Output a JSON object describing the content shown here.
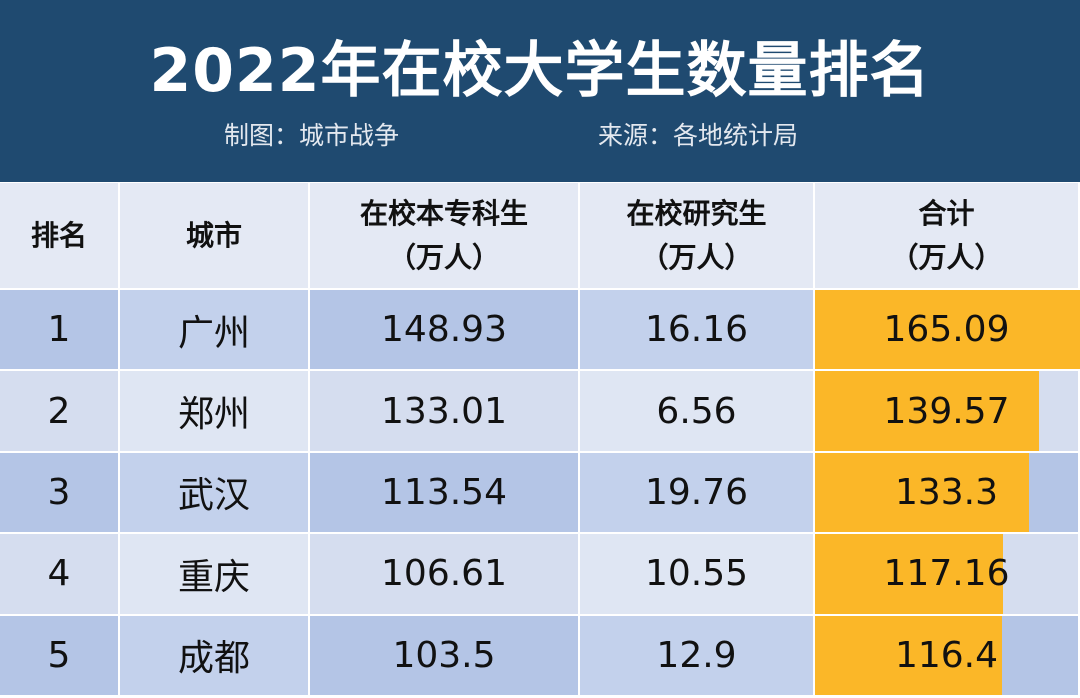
{
  "header": {
    "title": "2022年在校大学生数量排名",
    "credit": "制图：城市战争",
    "source": "来源：各地统计局"
  },
  "table": {
    "columns": [
      {
        "name": "排名"
      },
      {
        "name": "城市"
      },
      {
        "name": "在校本专科生",
        "unit": "（万人）"
      },
      {
        "name": "在校研究生",
        "unit": "（万人）"
      },
      {
        "name": "合计",
        "unit": "（万人）"
      }
    ],
    "rows": [
      [
        1,
        "广州",
        148.93,
        16.16,
        165.09
      ],
      [
        2,
        "郑州",
        133.01,
        6.56,
        139.57
      ],
      [
        3,
        "武汉",
        113.54,
        19.76,
        133.3
      ],
      [
        4,
        "重庆",
        106.61,
        10.55,
        117.16
      ],
      [
        5,
        "成都",
        103.5,
        12.9,
        116.4
      ]
    ]
  }
}
